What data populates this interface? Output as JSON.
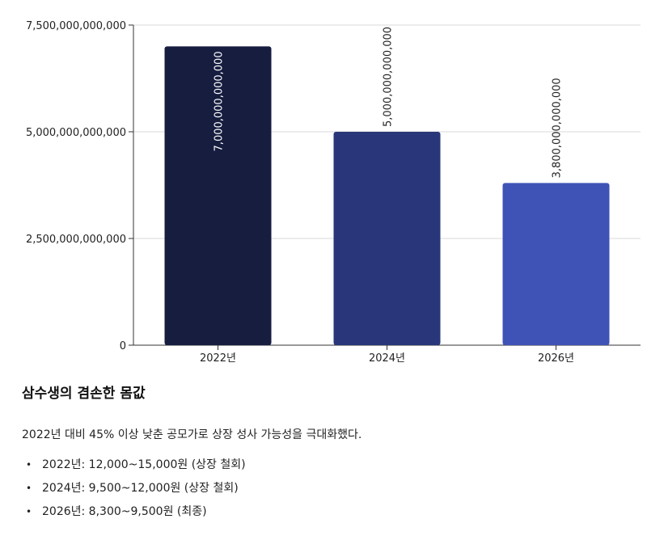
{
  "chart_data": {
    "type": "bar",
    "categories": [
      "2022년",
      "2024년",
      "2026년"
    ],
    "values": [
      7000000000000,
      5000000000000,
      3800000000000
    ],
    "value_labels": [
      "7,000,000,000,000",
      "5,000,000,000,000",
      "3,800,000,000,000"
    ],
    "y_ticks": [
      0,
      2500000000000,
      5000000000000,
      7500000000000
    ],
    "y_tick_labels": [
      "0",
      "2,500,000,000,000",
      "5,000,000,000,000",
      "7,500,000,000,000"
    ],
    "ylim": [
      0,
      7500000000000
    ],
    "grid": true,
    "colors": [
      "#161d3f",
      "#29377a",
      "#3f53b6"
    ],
    "title": "",
    "xlabel": "",
    "ylabel": ""
  },
  "text": {
    "heading": "삼수생의 겸손한 몸값",
    "summary": "2022년 대비 45% 이상 낮춘 공모가로 상장 성사 가능성을 극대화했다.",
    "ranges": [
      "2022년: 12,000~15,000원 (상장 철회)",
      "2024년: 9,500~12,000원 (상장 철회)",
      "2026년: 8,300~9,500원 (최종)"
    ]
  }
}
